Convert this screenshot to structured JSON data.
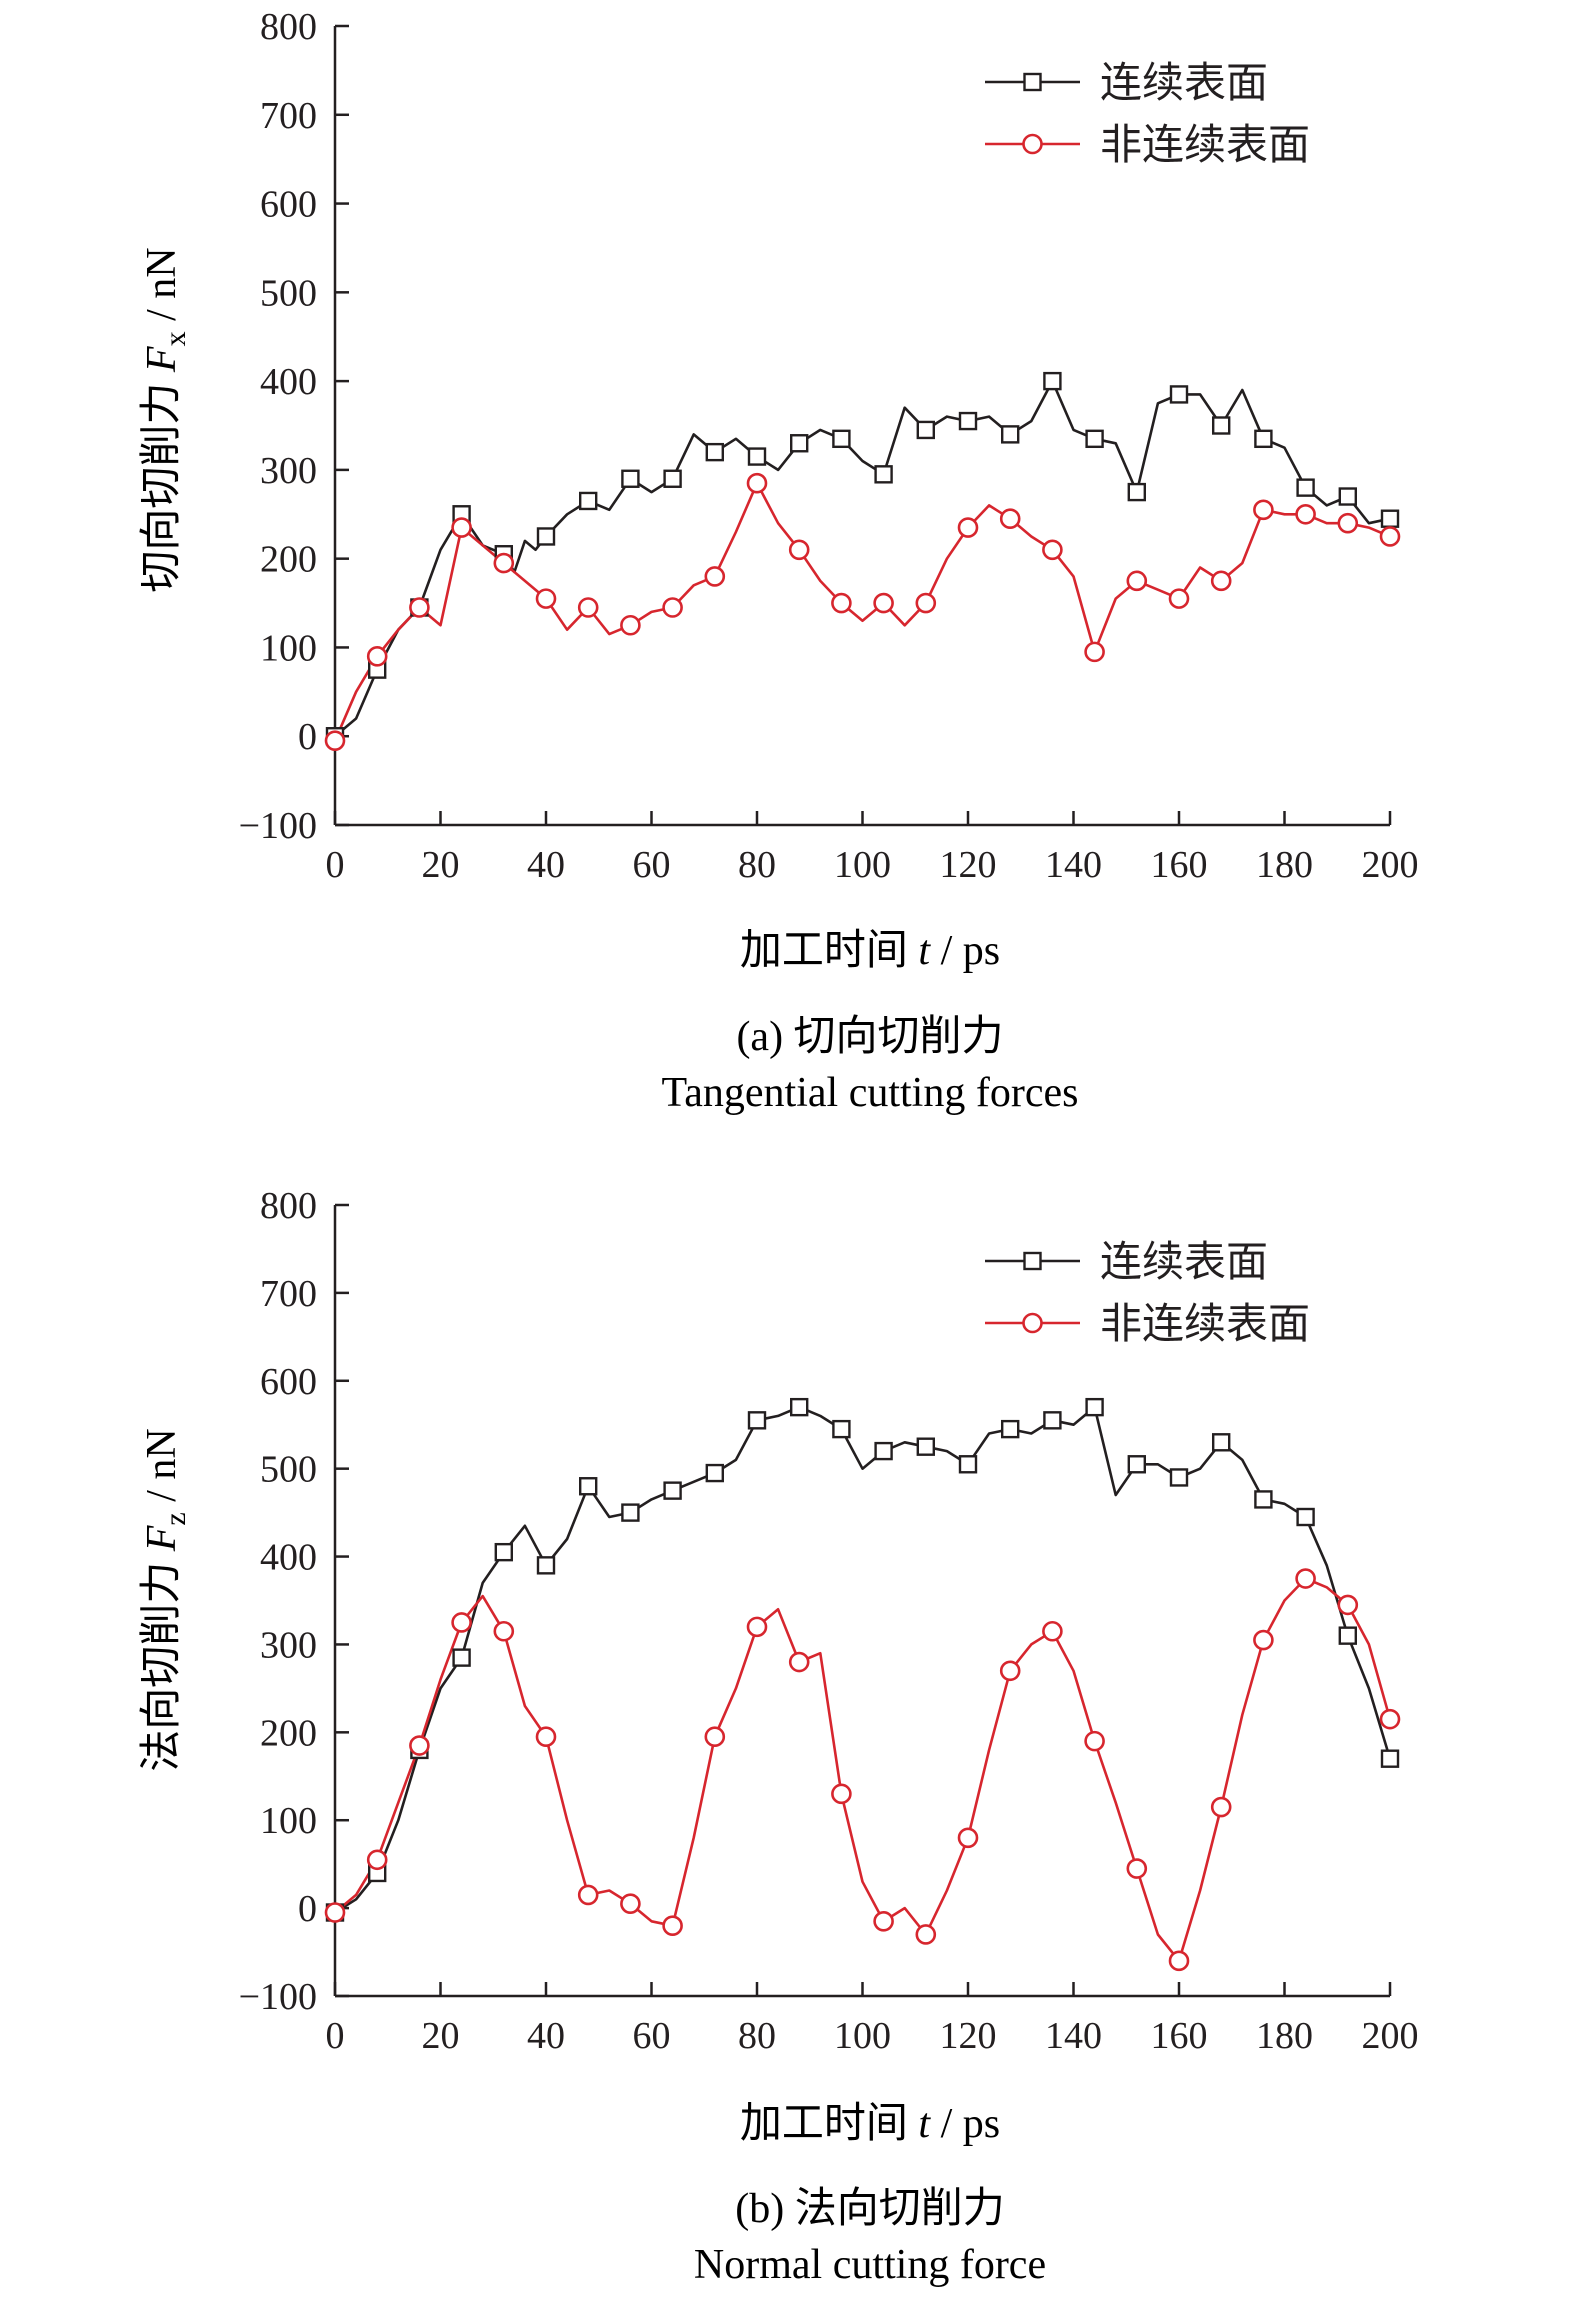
{
  "colors": {
    "continuous": "#231f20",
    "discontinuous": "#d7262e",
    "axis": "#231f20"
  },
  "chart_data": [
    {
      "type": "line",
      "caption": "(a) 切向切削力",
      "caption_en": "Tangential cutting forces",
      "xlabel_main": "加工时间 ",
      "xlabel_var": "t",
      "xlabel_unit": " / ps",
      "ylabel_main": "切向切削力 ",
      "ylabel_var": "F",
      "ylabel_sub": "x",
      "ylabel_unit": " / nN",
      "xlim": [
        0,
        200
      ],
      "ylim": [
        -100,
        800
      ],
      "xticks": [
        "0",
        "20",
        "40",
        "60",
        "80",
        "100",
        "120",
        "140",
        "160",
        "180",
        "200"
      ],
      "yticks": [
        "−100",
        "0",
        "100",
        "200",
        "300",
        "400",
        "500",
        "600",
        "700",
        "800"
      ],
      "legend_position": "top-right",
      "series": [
        {
          "name": "连续表面",
          "marker": "square",
          "x": [
            0,
            4,
            8,
            12,
            16,
            20,
            24,
            28,
            32,
            34,
            36,
            38,
            40,
            44,
            48,
            52,
            56,
            60,
            64,
            68,
            72,
            76,
            80,
            84,
            88,
            92,
            96,
            100,
            104,
            108,
            112,
            116,
            120,
            124,
            128,
            132,
            136,
            140,
            144,
            148,
            152,
            156,
            160,
            164,
            168,
            172,
            176,
            180,
            184,
            188,
            192,
            196,
            200
          ],
          "y": [
            0,
            20,
            75,
            120,
            145,
            210,
            250,
            215,
            205,
            185,
            220,
            210,
            225,
            250,
            265,
            255,
            290,
            275,
            290,
            340,
            320,
            335,
            315,
            300,
            330,
            345,
            335,
            310,
            295,
            370,
            345,
            360,
            355,
            360,
            340,
            355,
            400,
            345,
            335,
            330,
            275,
            375,
            385,
            385,
            350,
            390,
            335,
            325,
            280,
            260,
            270,
            240,
            245
          ]
        },
        {
          "name": "非连续表面",
          "marker": "circle",
          "x": [
            0,
            4,
            8,
            12,
            16,
            20,
            24,
            28,
            32,
            36,
            40,
            44,
            48,
            52,
            56,
            60,
            64,
            68,
            72,
            76,
            80,
            84,
            88,
            92,
            96,
            100,
            104,
            108,
            112,
            116,
            120,
            124,
            128,
            132,
            136,
            140,
            144,
            148,
            152,
            156,
            160,
            164,
            168,
            172,
            176,
            180,
            184,
            188,
            192,
            196,
            200
          ],
          "y": [
            -5,
            50,
            90,
            120,
            145,
            125,
            235,
            215,
            195,
            175,
            155,
            120,
            145,
            115,
            125,
            140,
            145,
            170,
            180,
            230,
            285,
            240,
            210,
            175,
            150,
            130,
            150,
            125,
            150,
            200,
            235,
            260,
            245,
            225,
            210,
            180,
            95,
            155,
            175,
            165,
            155,
            190,
            175,
            195,
            255,
            250,
            250,
            240,
            240,
            235,
            225
          ]
        }
      ]
    },
    {
      "type": "line",
      "caption": "(b) 法向切削力",
      "caption_en": "Normal cutting force",
      "xlabel_main": "加工时间 ",
      "xlabel_var": "t",
      "xlabel_unit": " / ps",
      "ylabel_main": "法向切削力 ",
      "ylabel_var": "F",
      "ylabel_sub": "z",
      "ylabel_unit": " / nN",
      "xlim": [
        0,
        200
      ],
      "ylim": [
        -100,
        800
      ],
      "xticks": [
        "0",
        "20",
        "40",
        "60",
        "80",
        "100",
        "120",
        "140",
        "160",
        "180",
        "200"
      ],
      "yticks": [
        "−100",
        "0",
        "100",
        "200",
        "300",
        "400",
        "500",
        "600",
        "700",
        "800"
      ],
      "legend_position": "top-right",
      "series": [
        {
          "name": "连续表面",
          "marker": "square",
          "x": [
            0,
            4,
            8,
            12,
            16,
            20,
            24,
            28,
            32,
            36,
            40,
            44,
            48,
            52,
            56,
            60,
            64,
            68,
            72,
            76,
            80,
            84,
            88,
            92,
            96,
            100,
            104,
            108,
            112,
            116,
            120,
            124,
            128,
            132,
            136,
            140,
            144,
            148,
            152,
            156,
            160,
            164,
            168,
            172,
            176,
            180,
            184,
            188,
            192,
            196,
            200
          ],
          "y": [
            -5,
            10,
            40,
            100,
            180,
            250,
            285,
            370,
            405,
            435,
            390,
            420,
            480,
            445,
            450,
            465,
            475,
            485,
            495,
            510,
            555,
            560,
            570,
            560,
            545,
            500,
            520,
            530,
            525,
            520,
            505,
            540,
            545,
            540,
            555,
            550,
            570,
            470,
            505,
            505,
            490,
            500,
            530,
            510,
            465,
            460,
            445,
            390,
            310,
            250,
            170
          ]
        },
        {
          "name": "非连续表面",
          "marker": "circle",
          "x": [
            0,
            4,
            8,
            12,
            16,
            20,
            24,
            28,
            32,
            36,
            40,
            44,
            48,
            52,
            56,
            60,
            64,
            68,
            72,
            76,
            80,
            84,
            88,
            92,
            96,
            100,
            104,
            108,
            112,
            116,
            120,
            124,
            128,
            132,
            136,
            140,
            144,
            148,
            152,
            156,
            160,
            164,
            168,
            172,
            176,
            180,
            184,
            188,
            192,
            196,
            200
          ],
          "y": [
            -5,
            15,
            55,
            120,
            185,
            260,
            325,
            355,
            315,
            230,
            195,
            100,
            15,
            20,
            5,
            -15,
            -20,
            80,
            195,
            250,
            320,
            340,
            280,
            290,
            130,
            30,
            -15,
            0,
            -30,
            20,
            80,
            180,
            270,
            300,
            315,
            270,
            190,
            120,
            45,
            -30,
            -60,
            20,
            115,
            220,
            305,
            350,
            375,
            365,
            345,
            300,
            215
          ]
        }
      ]
    }
  ]
}
